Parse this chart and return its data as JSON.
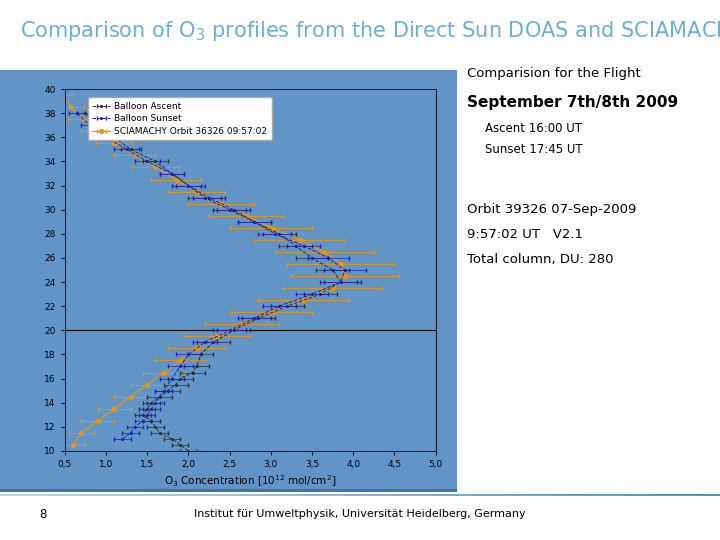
{
  "title_color": "#6baed6",
  "title_fontsize": 15,
  "slide_bg": "#ffffff",
  "plot_bg": "#6195c8",
  "footer_text": "Institut für Umweltphysik, Universität Heidelberg, Germany",
  "footer_page": "8",
  "right_text_line1": "Comparision for the Flight",
  "right_text_line2": "September 7th/8th 2009",
  "right_text_line3": "Ascent 16:00 UT",
  "right_text_line4": "Sunset 17:45 UT",
  "right_text_line5": "Orbit 39326 07-Sep-2009",
  "right_text_line6": "9:57:02 UT   V2.1",
  "right_text_line7": "Total column, DU: 280",
  "xlim": [
    0.5,
    5.0
  ],
  "ylim": [
    10,
    40
  ],
  "xticks": [
    0.5,
    1.0,
    1.5,
    2.0,
    2.5,
    3.0,
    3.5,
    4.0,
    4.5,
    5.0
  ],
  "yticks": [
    10,
    12,
    14,
    16,
    18,
    20,
    22,
    24,
    26,
    28,
    30,
    32,
    34,
    36,
    38,
    40
  ],
  "balloon_ascent_alt": [
    10,
    10.5,
    11,
    11.5,
    12,
    12.5,
    13,
    13.5,
    14,
    14.5,
    15,
    15.5,
    16,
    16.5,
    17,
    18,
    19,
    20,
    21,
    22,
    23,
    24,
    25,
    26,
    27,
    28,
    29,
    30,
    31,
    32,
    33,
    34,
    35,
    36,
    37,
    38
  ],
  "balloon_ascent_conc": [
    2.0,
    1.9,
    1.8,
    1.65,
    1.6,
    1.55,
    1.45,
    1.5,
    1.55,
    1.65,
    1.75,
    1.85,
    1.9,
    2.05,
    2.1,
    2.15,
    2.3,
    2.55,
    2.85,
    3.2,
    3.6,
    3.85,
    3.75,
    3.5,
    3.3,
    3.1,
    2.8,
    2.5,
    2.2,
    2.0,
    1.8,
    1.6,
    1.3,
    1.1,
    0.9,
    0.75
  ],
  "balloon_ascent_xerr": [
    0.1,
    0.1,
    0.1,
    0.1,
    0.1,
    0.1,
    0.1,
    0.1,
    0.1,
    0.15,
    0.15,
    0.15,
    0.15,
    0.15,
    0.15,
    0.15,
    0.2,
    0.2,
    0.2,
    0.2,
    0.2,
    0.2,
    0.2,
    0.2,
    0.2,
    0.2,
    0.2,
    0.2,
    0.2,
    0.15,
    0.15,
    0.15,
    0.12,
    0.1,
    0.1,
    0.1
  ],
  "balloon_sunset_alt": [
    11,
    11.5,
    12,
    12.5,
    13,
    13.5,
    14,
    15,
    16,
    17,
    18,
    19,
    20,
    21,
    22,
    23,
    24,
    25,
    26,
    27,
    28,
    29,
    30,
    31,
    32,
    33,
    34,
    35,
    36,
    37,
    38
  ],
  "balloon_sunset_conc": [
    1.2,
    1.3,
    1.35,
    1.45,
    1.5,
    1.55,
    1.6,
    1.7,
    1.8,
    1.9,
    2.0,
    2.2,
    2.5,
    2.8,
    3.1,
    3.5,
    3.85,
    3.9,
    3.7,
    3.4,
    3.05,
    2.8,
    2.55,
    2.25,
    2.0,
    1.8,
    1.5,
    1.25,
    1.0,
    0.8,
    0.65
  ],
  "balloon_sunset_xerr": [
    0.1,
    0.1,
    0.1,
    0.1,
    0.1,
    0.1,
    0.1,
    0.1,
    0.15,
    0.15,
    0.15,
    0.15,
    0.2,
    0.2,
    0.2,
    0.2,
    0.25,
    0.25,
    0.25,
    0.2,
    0.2,
    0.2,
    0.2,
    0.2,
    0.2,
    0.15,
    0.15,
    0.15,
    0.1,
    0.1,
    0.1
  ],
  "sciamachy_alt": [
    10.5,
    11.5,
    12.5,
    13.5,
    14.5,
    15.5,
    16.5,
    17.5,
    18.5,
    19.5,
    20.5,
    21.5,
    22.5,
    23.5,
    24.5,
    25.5,
    26.5,
    27.5,
    28.5,
    29.5,
    30.5,
    31.5,
    32.5,
    33.5,
    34.5,
    35.5,
    36.5,
    37.5,
    38.5,
    39.5
  ],
  "sciamachy_conc": [
    0.6,
    0.7,
    0.9,
    1.1,
    1.3,
    1.5,
    1.7,
    1.9,
    2.1,
    2.35,
    2.65,
    3.0,
    3.4,
    3.75,
    3.9,
    3.85,
    3.65,
    3.35,
    3.0,
    2.7,
    2.4,
    2.1,
    1.85,
    1.6,
    1.35,
    1.1,
    0.9,
    0.72,
    0.58,
    0.48
  ],
  "sciamachy_xerr": [
    0.15,
    0.15,
    0.2,
    0.2,
    0.2,
    0.2,
    0.25,
    0.3,
    0.35,
    0.4,
    0.45,
    0.5,
    0.55,
    0.6,
    0.65,
    0.65,
    0.6,
    0.55,
    0.5,
    0.45,
    0.4,
    0.35,
    0.3,
    0.28,
    0.25,
    0.22,
    0.2,
    0.18,
    0.15,
    0.12
  ],
  "ascent_color": "#303030",
  "sunset_color": "#2020bb",
  "sciamachy_color": "#e8950a",
  "tropopause_alt": 20,
  "xtick_labels": [
    "0,5",
    "1,0",
    "1,5",
    "2,0",
    "2,5",
    "3,0",
    "3,5",
    "4,0",
    "4,5",
    "5,0"
  ],
  "separator_color": "#4a6fa5",
  "footer_line_color": "#7a9ccc"
}
